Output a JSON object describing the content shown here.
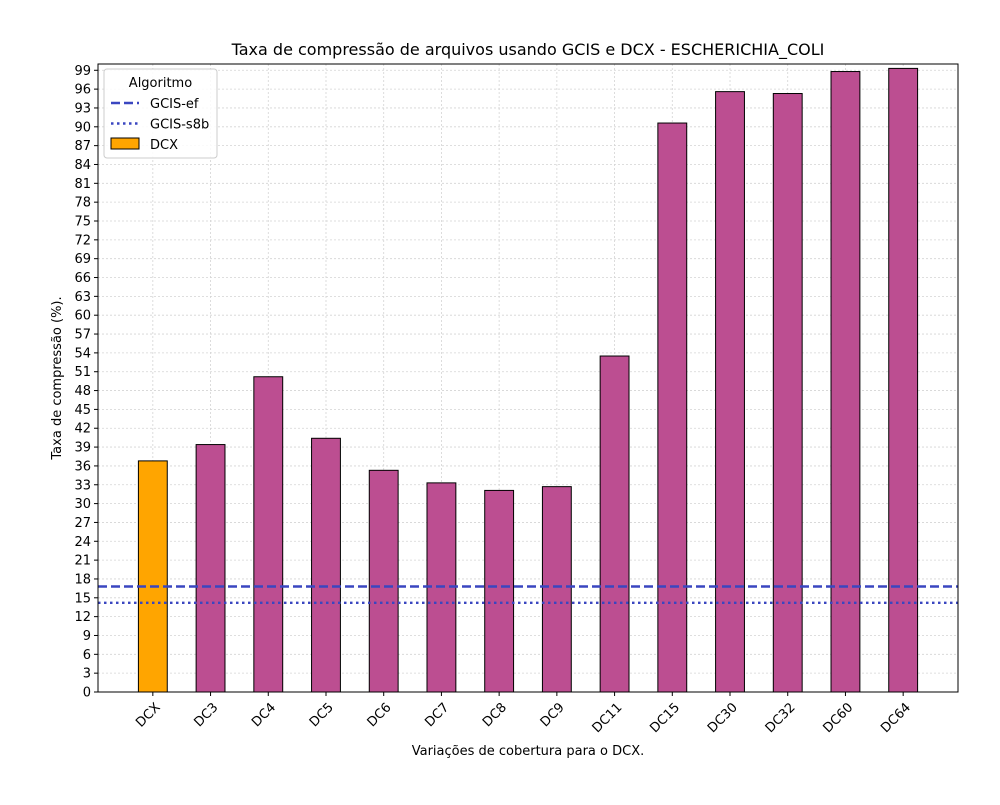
{
  "chart_data": {
    "type": "bar",
    "title": "Taxa de compressão de arquivos usando GCIS e DCX -  ESCHERICHIA_COLI",
    "xlabel": "Variações de cobertura para o DCX.",
    "ylabel": "Taxa de compressão (%).",
    "ylim": [
      0,
      100
    ],
    "yticks": [
      0,
      3,
      6,
      9,
      12,
      15,
      18,
      21,
      24,
      27,
      30,
      33,
      36,
      39,
      42,
      45,
      48,
      51,
      54,
      57,
      60,
      63,
      66,
      69,
      72,
      75,
      78,
      81,
      84,
      87,
      90,
      93,
      96,
      99
    ],
    "grid": true,
    "categories": [
      "DCX",
      "DC3",
      "DC4",
      "DC5",
      "DC6",
      "DC7",
      "DC8",
      "DC9",
      "DC11",
      "DC15",
      "DC30",
      "DC32",
      "DC60",
      "DC64"
    ],
    "values": [
      36.8,
      39.4,
      50.2,
      40.4,
      35.3,
      33.3,
      32.1,
      32.7,
      53.5,
      90.6,
      95.6,
      95.3,
      98.8,
      99.3
    ],
    "bar_colors": [
      "#ffa500",
      "#bc4e91",
      "#bc4e91",
      "#bc4e91",
      "#bc4e91",
      "#bc4e91",
      "#bc4e91",
      "#bc4e91",
      "#bc4e91",
      "#bc4e91",
      "#bc4e91",
      "#bc4e91",
      "#bc4e91",
      "#bc4e91"
    ],
    "reference_lines": [
      {
        "name": "GCIS-ef",
        "value": 16.8,
        "style": "dashed",
        "color": "#3a46c0"
      },
      {
        "name": "GCIS-s8b",
        "value": 14.2,
        "style": "dotted",
        "color": "#3a46c0"
      }
    ],
    "legend": {
      "title": "Algoritmo",
      "placement": "top-left",
      "entries": [
        {
          "label": "GCIS-ef",
          "kind": "dashed-line",
          "color": "#3a46c0"
        },
        {
          "label": "GCIS-s8b",
          "kind": "dotted-line",
          "color": "#3a46c0"
        },
        {
          "label": "DCX",
          "kind": "patch",
          "color": "#ffa500"
        }
      ]
    }
  }
}
